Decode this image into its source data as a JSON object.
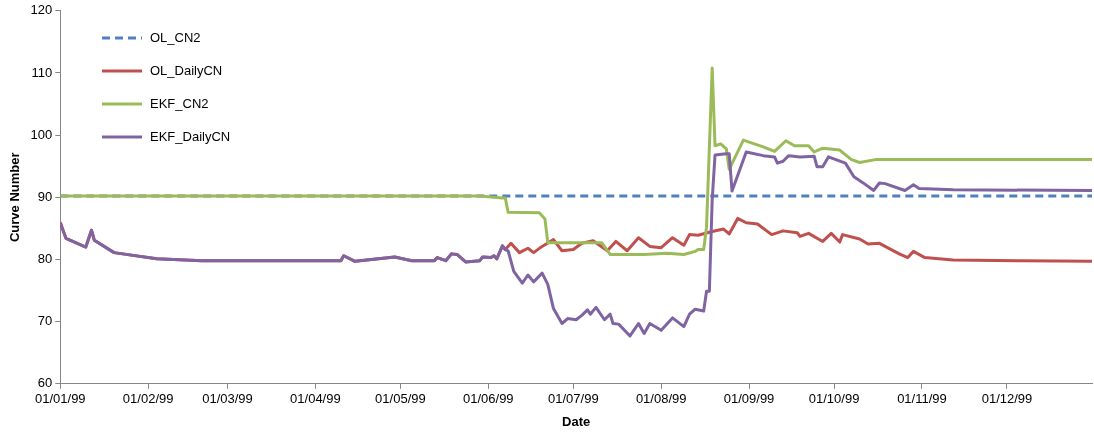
{
  "chart_data": {
    "type": "line",
    "xlabel": "Date",
    "ylabel": "Curve Number",
    "legend": "top left",
    "xlim": [
      "1999-01-01",
      "1999-12-31"
    ],
    "xticks": [
      {
        "value": "1999-01-01",
        "label": "01/01/99"
      },
      {
        "value": "1999-02-01",
        "label": "01/02/99"
      },
      {
        "value": "1999-03-01",
        "label": "01/03/99"
      },
      {
        "value": "1999-04-01",
        "label": "01/04/99"
      },
      {
        "value": "1999-05-01",
        "label": "01/05/99"
      },
      {
        "value": "1999-06-01",
        "label": "01/06/99"
      },
      {
        "value": "1999-07-01",
        "label": "01/07/99"
      },
      {
        "value": "1999-08-01",
        "label": "01/08/99"
      },
      {
        "value": "1999-09-01",
        "label": "01/09/99"
      },
      {
        "value": "1999-10-01",
        "label": "01/10/99"
      },
      {
        "value": "1999-11-01",
        "label": "01/11/99"
      },
      {
        "value": "1999-12-01",
        "label": "01/12/99"
      }
    ],
    "ylim": [
      60,
      120
    ],
    "yticks": [
      60,
      70,
      80,
      90,
      100,
      110,
      120
    ],
    "series": [
      {
        "name": "OL_CN2",
        "color": "#4f81bd",
        "line_style": "dashed",
        "x": [
          "1999-01-01",
          "1999-12-31"
        ],
        "values": [
          90.2,
          90.2
        ]
      },
      {
        "name": "OL_DailyCN",
        "color": "#c0504d",
        "x": [
          "1999-01-01",
          "1999-01-03",
          "1999-01-10",
          "1999-01-12",
          "1999-01-13",
          "1999-01-20",
          "1999-02-04",
          "1999-02-20",
          "1999-04-10",
          "1999-04-11",
          "1999-04-15",
          "1999-04-29",
          "1999-05-05",
          "1999-05-13",
          "1999-05-14",
          "1999-05-17",
          "1999-05-19",
          "1999-05-21",
          "1999-05-24",
          "1999-05-29",
          "1999-05-30",
          "1999-06-02",
          "1999-06-03",
          "1999-06-04",
          "1999-06-06",
          "1999-06-07",
          "1999-06-09",
          "1999-06-12",
          "1999-06-15",
          "1999-06-17",
          "1999-06-20",
          "1999-06-24",
          "1999-06-27",
          "1999-07-01",
          "1999-07-04",
          "1999-07-08",
          "1999-07-13",
          "1999-07-16",
          "1999-07-20",
          "1999-07-24",
          "1999-07-28",
          "1999-08-01",
          "1999-08-05",
          "1999-08-09",
          "1999-08-11",
          "1999-08-14",
          "1999-08-19",
          "1999-08-23",
          "1999-08-25",
          "1999-08-28",
          "1999-08-31",
          "1999-09-04",
          "1999-09-09",
          "1999-09-13",
          "1999-09-18",
          "1999-09-19",
          "1999-09-22",
          "1999-09-27",
          "1999-09-30",
          "1999-10-03",
          "1999-10-04",
          "1999-10-10",
          "1999-10-13",
          "1999-10-17",
          "1999-10-24",
          "1999-10-27",
          "1999-10-29",
          "1999-11-02",
          "1999-11-12",
          "1999-12-06",
          "1999-12-31"
        ],
        "values": [
          86.0,
          83.4,
          82.0,
          84.7,
          83.1,
          81.1,
          80.1,
          79.8,
          79.8,
          80.6,
          79.7,
          80.4,
          79.8,
          79.8,
          80.3,
          79.8,
          80.9,
          80.8,
          79.6,
          79.8,
          80.4,
          80.3,
          80.6,
          80.1,
          82.2,
          81.6,
          82.6,
          81.1,
          81.8,
          81.1,
          82.1,
          83.2,
          81.4,
          81.6,
          82.6,
          83.0,
          81.4,
          82.9,
          81.4,
          83.5,
          82.1,
          81.9,
          83.5,
          82.3,
          84.0,
          83.9,
          84.5,
          84.9,
          84.1,
          86.6,
          85.9,
          85.7,
          84.0,
          84.6,
          84.3,
          83.7,
          84.2,
          82.9,
          84.2,
          82.8,
          84.0,
          83.3,
          82.5,
          82.6,
          80.9,
          80.3,
          81.3,
          80.3,
          79.9,
          79.8,
          79.7
        ]
      },
      {
        "name": "EKF_CN2",
        "color": "#9bbb59",
        "x": [
          "1999-01-01",
          "1999-05-29",
          "1999-06-06",
          "1999-06-07",
          "1999-06-08",
          "1999-06-19",
          "1999-06-21",
          "1999-06-22",
          "1999-07-11",
          "1999-07-14",
          "1999-07-26",
          "1999-08-03",
          "1999-08-09",
          "1999-08-13",
          "1999-08-14",
          "1999-08-16",
          "1999-08-17",
          "1999-08-19",
          "1999-08-20",
          "1999-08-22",
          "1999-08-24",
          "1999-08-25",
          "1999-08-30",
          "1999-09-06",
          "1999-09-10",
          "1999-09-14",
          "1999-09-17",
          "1999-09-22",
          "1999-09-24",
          "1999-09-27",
          "1999-10-03",
          "1999-10-07",
          "1999-10-10",
          "1999-10-16",
          "1999-12-31"
        ],
        "values": [
          90.2,
          90.2,
          89.9,
          89.9,
          87.6,
          87.5,
          86.5,
          82.7,
          82.7,
          80.8,
          80.8,
          81.0,
          80.8,
          81.3,
          81.6,
          81.6,
          85.2,
          110.8,
          98.3,
          98.6,
          97.8,
          94.5,
          99.2,
          98.1,
          97.4,
          99.1,
          98.3,
          98.3,
          97.3,
          97.9,
          97.6,
          96.1,
          95.6,
          96.1,
          96.1
        ]
      },
      {
        "name": "EKF_DailyCN",
        "color": "#8064a2",
        "x": [
          "1999-01-01",
          "1999-01-03",
          "1999-01-10",
          "1999-01-12",
          "1999-01-13",
          "1999-01-20",
          "1999-02-04",
          "1999-02-20",
          "1999-04-10",
          "1999-04-11",
          "1999-04-15",
          "1999-04-29",
          "1999-05-05",
          "1999-05-13",
          "1999-05-14",
          "1999-05-17",
          "1999-05-19",
          "1999-05-21",
          "1999-05-24",
          "1999-05-29",
          "1999-05-30",
          "1999-06-02",
          "1999-06-03",
          "1999-06-04",
          "1999-06-06",
          "1999-06-07",
          "1999-06-08",
          "1999-06-10",
          "1999-06-13",
          "1999-06-15",
          "1999-06-17",
          "1999-06-20",
          "1999-06-22",
          "1999-06-24",
          "1999-06-27",
          "1999-06-29",
          "1999-07-02",
          "1999-07-04",
          "1999-07-06",
          "1999-07-07",
          "1999-07-09",
          "1999-07-12",
          "1999-07-14",
          "1999-07-15",
          "1999-07-17",
          "1999-07-21",
          "1999-07-24",
          "1999-07-26",
          "1999-07-28",
          "1999-08-01",
          "1999-08-05",
          "1999-08-09",
          "1999-08-11",
          "1999-08-13",
          "1999-08-16",
          "1999-08-17",
          "1999-08-18",
          "1999-08-19",
          "1999-08-20",
          "1999-08-24",
          "1999-08-25",
          "1999-08-26",
          "1999-08-31",
          "1999-09-06",
          "1999-09-10",
          "1999-09-11",
          "1999-09-13",
          "1999-09-15",
          "1999-09-19",
          "1999-09-24",
          "1999-09-25",
          "1999-09-27",
          "1999-09-29",
          "1999-10-05",
          "1999-10-08",
          "1999-10-11",
          "1999-10-15",
          "1999-10-17",
          "1999-10-19",
          "1999-10-26",
          "1999-10-29",
          "1999-10-31",
          "1999-11-12",
          "1999-12-31"
        ],
        "values": [
          85.8,
          83.4,
          82.0,
          84.7,
          83.1,
          81.1,
          80.1,
          79.8,
          79.8,
          80.6,
          79.7,
          80.4,
          79.8,
          79.8,
          80.3,
          79.8,
          80.9,
          80.8,
          79.6,
          79.8,
          80.4,
          80.3,
          80.6,
          80.1,
          82.2,
          81.6,
          81.4,
          78.1,
          76.2,
          77.5,
          76.4,
          77.8,
          76.0,
          72.1,
          69.7,
          70.5,
          70.3,
          71.0,
          71.9,
          71.2,
          72.3,
          70.3,
          71.2,
          69.7,
          69.6,
          67.7,
          69.7,
          68.1,
          69.7,
          68.6,
          70.6,
          69.2,
          71.2,
          72.0,
          71.7,
          74.9,
          74.9,
          89.6,
          96.8,
          97.0,
          97.0,
          91.0,
          97.3,
          96.7,
          96.5,
          95.5,
          95.8,
          96.7,
          96.5,
          96.6,
          94.9,
          94.9,
          96.5,
          95.5,
          93.3,
          92.4,
          91.1,
          92.3,
          92.2,
          91.1,
          92.0,
          91.4,
          91.2,
          91.1
        ]
      }
    ]
  }
}
